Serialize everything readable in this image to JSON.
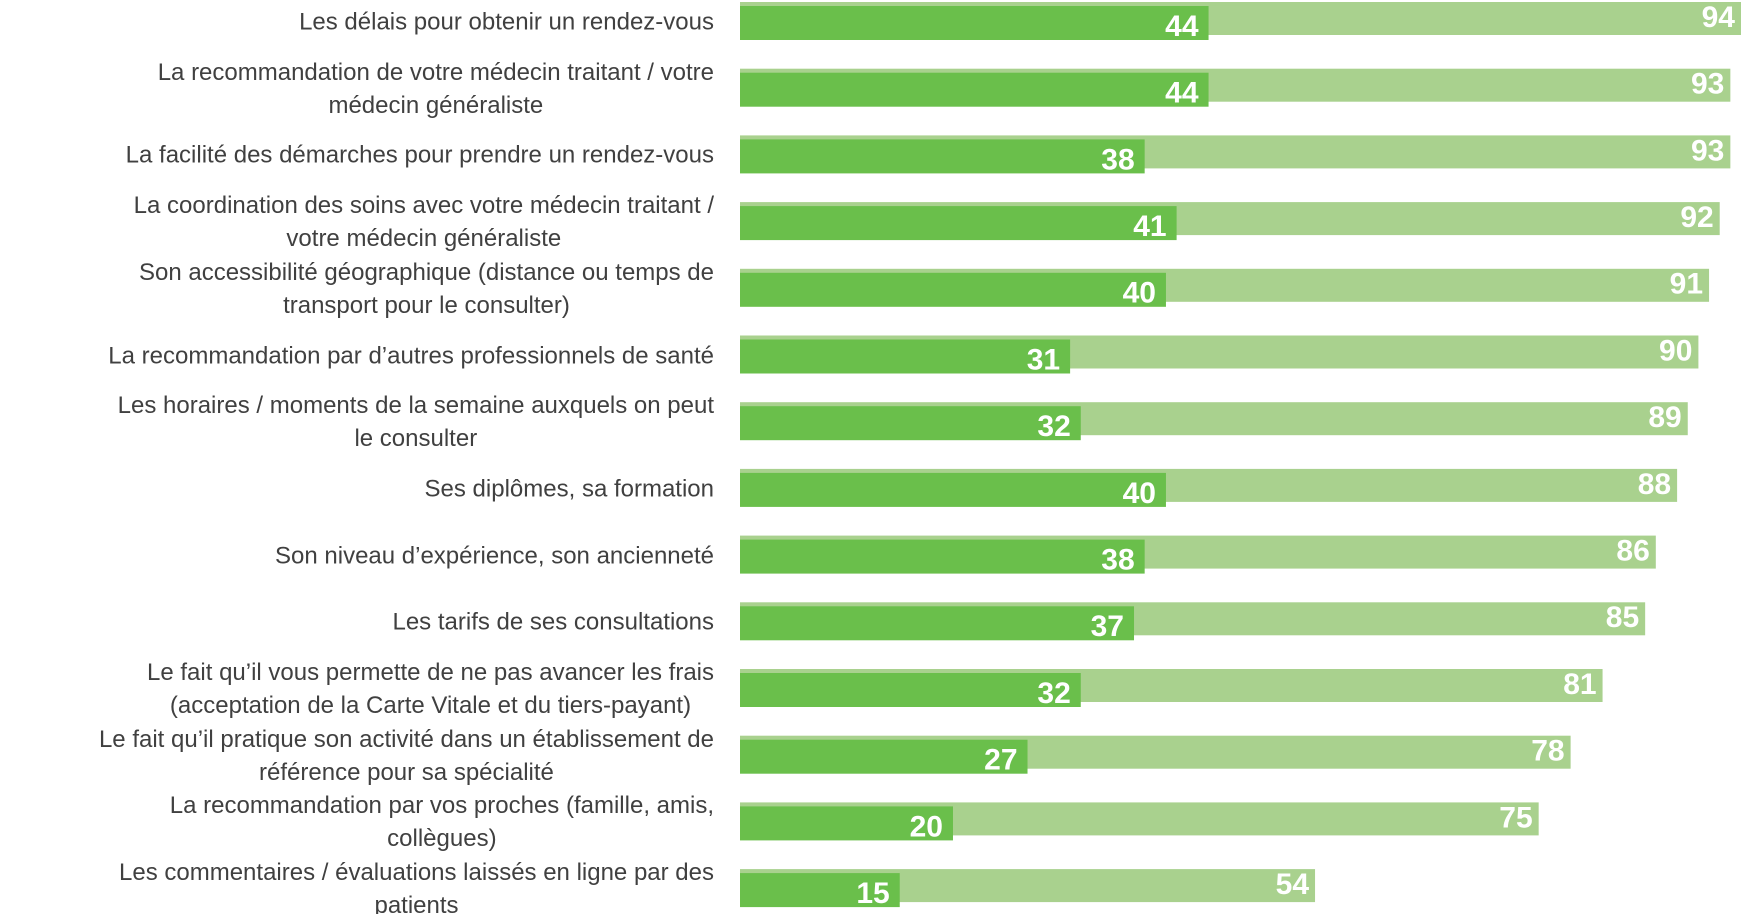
{
  "chart_data": {
    "type": "bar",
    "orientation": "horizontal",
    "categories": [
      [
        "Les délais pour obtenir un rendez-vous"
      ],
      [
        "La recommandation de votre médecin traitant / votre",
        "médecin généraliste"
      ],
      [
        "La facilité des démarches pour prendre un rendez-vous"
      ],
      [
        "La coordination des soins avec votre médecin traitant /",
        "votre médecin généraliste"
      ],
      [
        "Son accessibilité géographique (distance ou temps de",
        "transport pour le consulter)"
      ],
      [
        "La recommandation par d’autres professionnels de santé"
      ],
      [
        "Les horaires / moments de la semaine auxquels on peut",
        "le consulter"
      ],
      [
        "Ses diplômes, sa formation"
      ],
      [
        "Son niveau d’expérience, son ancienneté"
      ],
      [
        "Les tarifs de ses consultations"
      ],
      [
        "Le fait qu’il vous permette de ne pas avancer les frais",
        "(acceptation de la Carte Vitale et du tiers-payant)"
      ],
      [
        "Le fait qu’il pratique son activité dans un établissement de",
        "référence pour sa spécialité"
      ],
      [
        "La recommandation par vos proches (famille, amis,",
        "collègues)"
      ],
      [
        "Les commentaires / évaluations laissés en ligne par des",
        "patients"
      ]
    ],
    "series": [
      {
        "color": "#a9d18e",
        "values": [
          94,
          93,
          93,
          92,
          91,
          90,
          89,
          88,
          86,
          85,
          81,
          78,
          75,
          54
        ]
      },
      {
        "color": "#6abf4b",
        "values": [
          44,
          44,
          38,
          41,
          40,
          31,
          32,
          40,
          38,
          37,
          32,
          27,
          20,
          15
        ]
      }
    ]
  }
}
